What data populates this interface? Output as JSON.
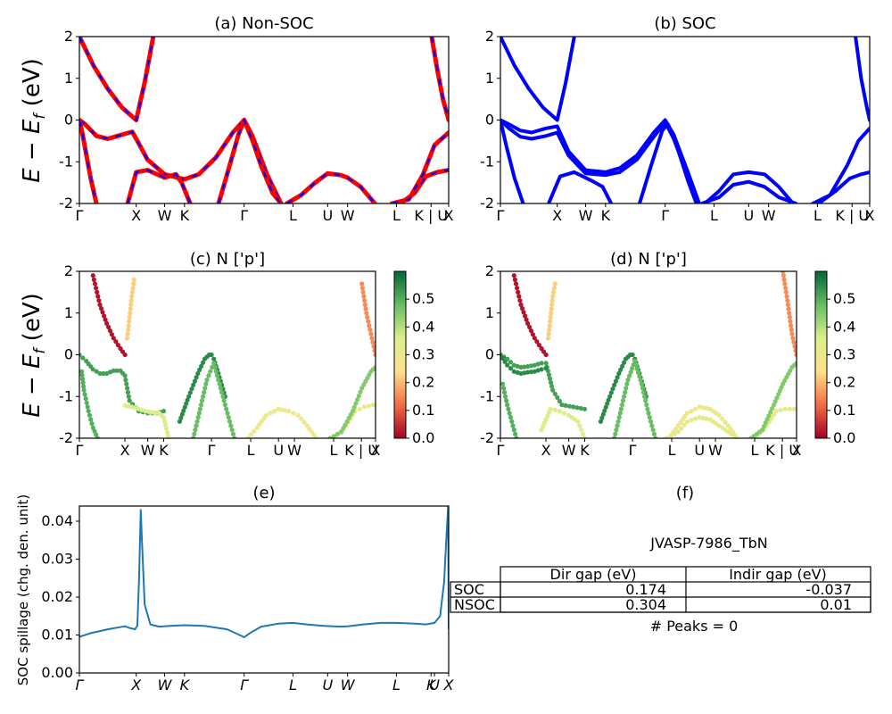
{
  "bands": {
    "k_labels": [
      "Γ",
      "X",
      "W",
      "K",
      "Γ",
      "L",
      "U",
      "W",
      "L",
      "K | U",
      "X"
    ],
    "k_positions": [
      0,
      1.0,
      1.5,
      1.85,
      2.9,
      3.76,
      4.37,
      4.72,
      5.58,
      6.19,
      6.5
    ],
    "ylim": [
      -2,
      2
    ],
    "yticks": [
      -2,
      -1,
      0,
      1,
      2
    ],
    "ylabel": "E − E_f (eV)"
  },
  "chart_data": [
    {
      "id": "a",
      "type": "line",
      "title": "(a) Non-SOC",
      "ylabel": "E − E_f (eV)",
      "ylim": [
        -2,
        2
      ],
      "colors": {
        "primary": "#ff0000",
        "overlay": "#0000ff"
      },
      "series": [
        {
          "x": [
            0,
            0.25,
            0.5,
            0.75,
            1.0,
            1.15,
            1.3
          ],
          "y": [
            2.0,
            1.3,
            0.75,
            0.3,
            0.0,
            0.9,
            2.0
          ]
        },
        {
          "x": [
            0,
            0.1,
            0.3,
            0.5,
            0.75,
            0.93,
            1.0,
            1.2,
            1.5,
            1.85,
            2.1,
            2.4,
            2.7,
            2.9,
            3.05,
            3.3,
            3.55
          ],
          "y": [
            0.0,
            -0.1,
            -0.38,
            -0.45,
            -0.35,
            -0.28,
            -0.45,
            -0.95,
            -1.3,
            -1.42,
            -1.3,
            -0.9,
            -0.3,
            0.0,
            -0.4,
            -1.3,
            -2.0
          ]
        },
        {
          "x": [
            0,
            0.05,
            0.2,
            0.3
          ],
          "y": [
            0.0,
            -0.3,
            -1.4,
            -2.0
          ]
        },
        {
          "x": [
            0.85,
            1.0,
            1.2,
            1.5,
            1.7,
            1.8,
            1.95
          ],
          "y": [
            -2.0,
            -1.25,
            -1.2,
            -1.38,
            -1.3,
            -1.5,
            -2.0
          ]
        },
        {
          "x": [
            2.45,
            2.6,
            2.8,
            2.9,
            3.05,
            3.2,
            3.4,
            3.55
          ],
          "y": [
            -2.0,
            -1.3,
            -0.35,
            0.0,
            -0.5,
            -1.1,
            -1.75,
            -2.0
          ]
        },
        {
          "x": [
            3.65,
            3.9,
            4.15,
            4.37,
            4.6,
            4.72,
            4.95,
            5.2
          ],
          "y": [
            -2.0,
            -1.8,
            -1.5,
            -1.28,
            -1.32,
            -1.38,
            -1.6,
            -2.0
          ]
        },
        {
          "x": [
            5.65,
            5.9,
            6.1,
            6.3,
            6.5
          ],
          "y": [
            -2.0,
            -1.75,
            -1.35,
            -1.25,
            -1.2
          ]
        },
        {
          "x": [
            5.5,
            5.8,
            6.05,
            6.25,
            6.5
          ],
          "y": [
            -2.0,
            -1.9,
            -1.3,
            -0.6,
            -0.3
          ]
        },
        {
          "x": [
            6.2,
            6.3,
            6.4,
            6.5
          ],
          "y": [
            2.0,
            1.2,
            0.5,
            0.0
          ]
        }
      ]
    },
    {
      "id": "b",
      "type": "line",
      "title": "(b) SOC",
      "ylim": [
        -2,
        2
      ],
      "colors": {
        "primary": "#0000ff"
      },
      "series": [
        {
          "x": [
            0,
            0.25,
            0.5,
            0.75,
            1.0,
            1.15,
            1.3
          ],
          "y": [
            2.0,
            1.3,
            0.75,
            0.3,
            0.0,
            0.9,
            2.0
          ]
        },
        {
          "x": [
            0,
            0.15,
            0.35,
            0.55,
            0.8,
            1.0,
            1.2,
            1.5,
            1.85,
            2.1,
            2.4,
            2.7,
            2.9,
            3.05,
            3.3,
            3.5
          ],
          "y": [
            0.0,
            -0.1,
            -0.25,
            -0.3,
            -0.2,
            -0.15,
            -0.75,
            -1.2,
            -1.25,
            -1.15,
            -0.85,
            -0.3,
            0.0,
            -0.35,
            -1.25,
            -2.0
          ]
        },
        {
          "x": [
            0,
            0.15,
            0.35,
            0.55,
            0.8,
            1.0,
            1.2,
            1.5,
            1.85,
            2.1,
            2.4,
            2.7,
            2.9,
            3.05,
            3.3,
            3.5
          ],
          "y": [
            0.0,
            -0.2,
            -0.4,
            -0.45,
            -0.38,
            -0.3,
            -0.85,
            -1.28,
            -1.32,
            -1.25,
            -0.95,
            -0.4,
            -0.05,
            -0.45,
            -1.35,
            -2.0
          ]
        },
        {
          "x": [
            0,
            0.1,
            0.25,
            0.4
          ],
          "y": [
            0.0,
            -0.6,
            -1.4,
            -2.0
          ]
        },
        {
          "x": [
            0.85,
            1.05,
            1.3,
            1.6,
            1.8,
            1.95
          ],
          "y": [
            -2.0,
            -1.35,
            -1.25,
            -1.45,
            -1.6,
            -2.0
          ]
        },
        {
          "x": [
            2.45,
            2.65,
            2.85,
            2.95,
            3.1,
            3.3,
            3.45
          ],
          "y": [
            -2.0,
            -1.1,
            -0.25,
            -0.1,
            -0.6,
            -1.45,
            -2.0
          ]
        },
        {
          "x": [
            3.6,
            3.85,
            4.1,
            4.37,
            4.65,
            4.9,
            5.15
          ],
          "y": [
            -2.0,
            -1.7,
            -1.3,
            -1.25,
            -1.3,
            -1.6,
            -2.0
          ]
        },
        {
          "x": [
            3.55,
            3.85,
            4.1,
            4.37,
            4.65,
            4.9,
            5.2
          ],
          "y": [
            -2.0,
            -1.85,
            -1.55,
            -1.48,
            -1.6,
            -1.85,
            -2.0
          ]
        },
        {
          "x": [
            5.6,
            5.9,
            6.15,
            6.35,
            6.5
          ],
          "y": [
            -2.0,
            -1.7,
            -1.4,
            -1.3,
            -1.25
          ]
        },
        {
          "x": [
            5.5,
            5.8,
            6.1,
            6.3,
            6.5
          ],
          "y": [
            -2.0,
            -1.8,
            -1.1,
            -0.5,
            -0.2
          ]
        },
        {
          "x": [
            6.25,
            6.35,
            6.45,
            6.5
          ],
          "y": [
            2.0,
            1.0,
            0.3,
            0.0
          ]
        }
      ]
    },
    {
      "id": "c",
      "type": "scatter",
      "title": "(c)  N ['p']",
      "ylabel": "E − E_f (eV)",
      "ylim": [
        -2,
        2
      ],
      "colorbar": {
        "ticks": [
          "0.0",
          "0.1",
          "0.2",
          "0.3",
          "0.4",
          "0.5"
        ],
        "range": [
          0,
          0.6
        ],
        "colors": [
          "#a50026",
          "#f46d43",
          "#fee08b",
          "#d9ef8b",
          "#66bd63",
          "#006837"
        ]
      },
      "series": [
        {
          "x": [
            0.3,
            0.45,
            0.6,
            0.75,
            0.9,
            1.0
          ],
          "y": [
            1.9,
            1.2,
            0.75,
            0.4,
            0.15,
            0.0
          ],
          "w": 0.02
        },
        {
          "x": [
            1.05,
            1.1,
            1.15,
            1.2
          ],
          "y": [
            0.4,
            0.9,
            1.4,
            1.8
          ],
          "w": 0.22
        },
        {
          "x": [
            0,
            0.15,
            0.3,
            0.45,
            0.6,
            0.75,
            0.9,
            1.0,
            1.1,
            1.3,
            1.5,
            1.7,
            1.85
          ],
          "y": [
            0.0,
            -0.15,
            -0.35,
            -0.45,
            -0.45,
            -0.38,
            -0.38,
            -0.5,
            -1.1,
            -1.35,
            -1.4,
            -1.4,
            -1.35
          ],
          "w": 0.52
        },
        {
          "x": [
            0.05,
            0.1,
            0.2,
            0.3,
            0.4
          ],
          "y": [
            -0.4,
            -0.85,
            -1.35,
            -1.75,
            -2.0
          ],
          "w": 0.5
        },
        {
          "x": [
            1.0,
            1.15,
            1.3,
            1.45,
            1.6,
            1.75,
            1.85,
            1.95
          ],
          "y": [
            -1.22,
            -1.25,
            -1.3,
            -1.35,
            -1.38,
            -1.4,
            -1.5,
            -1.95
          ],
          "w": 0.35
        },
        {
          "x": [
            2.2,
            2.4,
            2.6,
            2.75,
            2.85,
            2.9,
            2.95,
            3.05,
            3.2
          ],
          "y": [
            -1.6,
            -1.0,
            -0.45,
            -0.1,
            0.0,
            0.0,
            -0.1,
            -0.45,
            -1.0
          ],
          "w": 0.55
        },
        {
          "x": [
            2.5,
            2.65,
            2.8,
            2.95,
            3.1,
            3.25,
            3.4
          ],
          "y": [
            -2.0,
            -1.3,
            -0.6,
            -0.2,
            -0.8,
            -1.4,
            -2.0
          ],
          "w": 0.48
        },
        {
          "x": [
            3.7,
            3.9,
            4.1,
            4.37,
            4.6,
            4.8,
            5.0,
            5.2
          ],
          "y": [
            -2.0,
            -1.75,
            -1.45,
            -1.3,
            -1.35,
            -1.45,
            -1.7,
            -2.0
          ],
          "w": 0.3
        },
        {
          "x": [
            5.6,
            5.85,
            6.05,
            6.25,
            6.45
          ],
          "y": [
            -2.0,
            -1.7,
            -1.35,
            -1.25,
            -1.2
          ],
          "w": 0.3
        },
        {
          "x": [
            5.5,
            5.75,
            6.0,
            6.2,
            6.4,
            6.5
          ],
          "y": [
            -2.0,
            -1.85,
            -1.35,
            -0.8,
            -0.4,
            -0.3
          ],
          "w": 0.45
        },
        {
          "x": [
            6.2,
            6.3,
            6.4,
            6.5
          ],
          "y": [
            1.7,
            1.0,
            0.5,
            0.0
          ],
          "w": 0.15
        }
      ]
    },
    {
      "id": "d",
      "type": "scatter",
      "title": "(d) N ['p']",
      "ylim": [
        -2,
        2
      ],
      "colorbar": {
        "ticks": [
          "0.0",
          "0.1",
          "0.2",
          "0.3",
          "0.4",
          "0.5"
        ],
        "range": [
          0,
          0.6
        ],
        "colors": [
          "#a50026",
          "#f46d43",
          "#fee08b",
          "#d9ef8b",
          "#66bd63",
          "#006837"
        ]
      },
      "series": [
        {
          "x": [
            0.3,
            0.45,
            0.6,
            0.75,
            0.9,
            1.0
          ],
          "y": [
            1.9,
            1.2,
            0.75,
            0.4,
            0.15,
            0.0
          ],
          "w": 0.02
        },
        {
          "x": [
            1.05,
            1.1,
            1.15,
            1.2
          ],
          "y": [
            0.4,
            0.9,
            1.4,
            1.7
          ],
          "w": 0.22
        },
        {
          "x": [
            0,
            0.15,
            0.3,
            0.45,
            0.6,
            0.75,
            0.9,
            1.0,
            1.15,
            1.35,
            1.6,
            1.85
          ],
          "y": [
            0.0,
            -0.1,
            -0.25,
            -0.3,
            -0.28,
            -0.25,
            -0.2,
            -0.2,
            -0.85,
            -1.2,
            -1.25,
            -1.3
          ],
          "w": 0.52
        },
        {
          "x": [
            0,
            0.15,
            0.3,
            0.45,
            0.6,
            0.75,
            0.9,
            1.0
          ],
          "y": [
            0.0,
            -0.25,
            -0.4,
            -0.45,
            -0.42,
            -0.4,
            -0.35,
            -0.32
          ],
          "w": 0.55
        },
        {
          "x": [
            0.05,
            0.15,
            0.25,
            0.35
          ],
          "y": [
            -0.7,
            -1.2,
            -1.6,
            -2.0
          ],
          "w": 0.5
        },
        {
          "x": [
            0.9,
            1.1,
            1.3,
            1.5,
            1.7,
            1.85
          ],
          "y": [
            -1.8,
            -1.3,
            -1.35,
            -1.45,
            -1.6,
            -2.0
          ],
          "w": 0.35
        },
        {
          "x": [
            2.2,
            2.4,
            2.6,
            2.75,
            2.85,
            2.9,
            2.95,
            3.05,
            3.2
          ],
          "y": [
            -1.6,
            -1.0,
            -0.45,
            -0.1,
            0.0,
            0.0,
            -0.1,
            -0.45,
            -1.0
          ],
          "w": 0.55
        },
        {
          "x": [
            2.5,
            2.65,
            2.8,
            2.95,
            3.1,
            3.25,
            3.4
          ],
          "y": [
            -2.0,
            -1.3,
            -0.6,
            -0.15,
            -0.7,
            -1.4,
            -2.0
          ],
          "w": 0.48
        },
        {
          "x": [
            3.7,
            3.9,
            4.1,
            4.37,
            4.6,
            4.8,
            5.0,
            5.2
          ],
          "y": [
            -2.0,
            -1.7,
            -1.4,
            -1.25,
            -1.3,
            -1.45,
            -1.7,
            -2.0
          ],
          "w": 0.3
        },
        {
          "x": [
            3.65,
            3.9,
            4.1,
            4.37,
            4.6,
            4.8,
            5.0,
            5.2
          ],
          "y": [
            -2.0,
            -1.85,
            -1.6,
            -1.5,
            -1.55,
            -1.7,
            -1.85,
            -2.0
          ],
          "w": 0.32
        },
        {
          "x": [
            5.6,
            5.85,
            6.05,
            6.25,
            6.45
          ],
          "y": [
            -2.0,
            -1.7,
            -1.35,
            -1.3,
            -1.3
          ],
          "w": 0.32
        },
        {
          "x": [
            5.5,
            5.75,
            6.0,
            6.2,
            6.4,
            6.5
          ],
          "y": [
            -2.0,
            -1.8,
            -1.2,
            -0.7,
            -0.3,
            -0.2
          ],
          "w": 0.45
        },
        {
          "x": [
            6.2,
            6.3,
            6.4,
            6.5
          ],
          "y": [
            2.0,
            1.3,
            0.5,
            0.0
          ],
          "w": 0.15
        }
      ]
    },
    {
      "id": "e",
      "type": "line",
      "title": "(e)",
      "ylabel": "SOC spillage (chg. den. unit)",
      "ylim": [
        0,
        0.044
      ],
      "yticks": [
        "0.00",
        "0.01",
        "0.02",
        "0.03",
        "0.04"
      ],
      "yticks_values": [
        0,
        0.01,
        0.02,
        0.03,
        0.04
      ],
      "k_labels": [
        "Γ",
        "X",
        "W",
        "K",
        "Γ",
        "L",
        "U",
        "W",
        "L",
        "K",
        "U",
        "X"
      ],
      "k_positions": [
        0,
        1.0,
        1.5,
        1.85,
        2.9,
        3.76,
        4.37,
        4.72,
        5.58,
        6.19,
        6.25,
        6.5
      ],
      "colors": {
        "line": "#1f77b4"
      },
      "x": [
        0,
        0.2,
        0.5,
        0.8,
        0.9,
        0.98,
        1.02,
        1.05,
        1.08,
        1.1,
        1.15,
        1.25,
        1.4,
        1.6,
        1.85,
        2.2,
        2.6,
        2.85,
        2.9,
        3.0,
        3.2,
        3.5,
        3.76,
        4.0,
        4.3,
        4.6,
        4.72,
        5.0,
        5.3,
        5.58,
        5.9,
        6.1,
        6.25,
        6.35,
        6.42,
        6.46,
        6.49,
        6.5
      ],
      "y": [
        0.0095,
        0.0105,
        0.0115,
        0.0123,
        0.0118,
        0.0115,
        0.0125,
        0.025,
        0.043,
        0.035,
        0.018,
        0.0128,
        0.0122,
        0.0124,
        0.0126,
        0.0124,
        0.0115,
        0.0098,
        0.0094,
        0.0105,
        0.0122,
        0.013,
        0.0132,
        0.0128,
        0.0124,
        0.0122,
        0.0123,
        0.0128,
        0.0132,
        0.0132,
        0.013,
        0.0128,
        0.0132,
        0.015,
        0.024,
        0.036,
        0.044,
        0.0115
      ]
    }
  ],
  "panel_f": {
    "title": "(f)",
    "material": "JVASP-7986_TbN",
    "headers": [
      "",
      "Dir gap (eV)",
      "Indir gap (eV)"
    ],
    "rows": [
      {
        "label": "SOC",
        "dir": "0.174",
        "indir": "-0.037"
      },
      {
        "label": "NSOC",
        "dir": "0.304",
        "indir": "0.01"
      }
    ],
    "peaks": "# Peaks = 0"
  }
}
